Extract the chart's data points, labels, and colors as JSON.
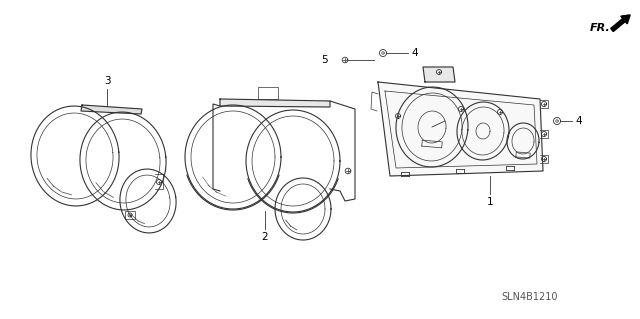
{
  "bg_color": "#ffffff",
  "line_color": "#333333",
  "label_color": "#000000",
  "fig_width": 6.4,
  "fig_height": 3.19,
  "dpi": 100,
  "diagram_code": "SLN4B1210",
  "fr_label": "FR."
}
